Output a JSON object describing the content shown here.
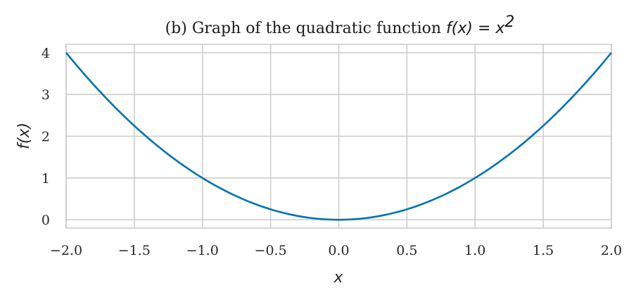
{
  "chart_data": {
    "type": "line",
    "title": "(b) Graph of the quadratic function ",
    "title_math": "f(x) = x",
    "title_superscript": "2",
    "xlabel": "x",
    "ylabel": "f(x)",
    "xlim": [
      -2.0,
      2.0
    ],
    "ylim": [
      -0.2,
      4.2
    ],
    "xticks": [
      -2.0,
      -1.5,
      -1.0,
      -0.5,
      0.0,
      0.5,
      1.0,
      1.5,
      2.0
    ],
    "xtick_labels": [
      "−2.0",
      "−1.5",
      "−1.0",
      "−0.5",
      "0.0",
      "0.5",
      "1.0",
      "1.5",
      "2.0"
    ],
    "yticks": [
      0,
      1,
      2,
      3,
      4
    ],
    "ytick_labels": [
      "0",
      "1",
      "2",
      "3",
      "4"
    ],
    "grid": true,
    "series": [
      {
        "function": "x^2",
        "color": "#0072b2",
        "x": [
          -2.0,
          -1.75,
          -1.5,
          -1.25,
          -1.0,
          -0.75,
          -0.5,
          -0.25,
          0.0,
          0.25,
          0.5,
          0.75,
          1.0,
          1.25,
          1.5,
          1.75,
          2.0
        ],
        "y": [
          4.0,
          3.0625,
          2.25,
          1.5625,
          1.0,
          0.5625,
          0.25,
          0.0625,
          0.0,
          0.0625,
          0.25,
          0.5625,
          1.0,
          1.5625,
          2.25,
          3.0625,
          4.0
        ]
      }
    ]
  }
}
